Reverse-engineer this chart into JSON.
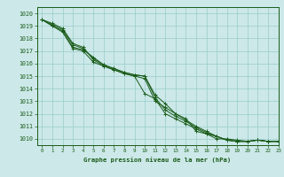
{
  "title": "Graphe pression niveau de la mer (hPa)",
  "bg_color": "#cce8e8",
  "grid_color": "#99cccc",
  "line_color": "#1a5c1a",
  "xlim": [
    -0.5,
    23
  ],
  "ylim": [
    1009.5,
    1020.5
  ],
  "yticks": [
    1010,
    1011,
    1012,
    1013,
    1014,
    1015,
    1016,
    1017,
    1018,
    1019,
    1020
  ],
  "xticks": [
    0,
    1,
    2,
    3,
    4,
    5,
    6,
    7,
    8,
    9,
    10,
    11,
    12,
    13,
    14,
    15,
    16,
    17,
    18,
    19,
    20,
    21,
    22,
    23
  ],
  "series": [
    [
      1019.5,
      1019.0,
      1018.5,
      1017.2,
      1017.0,
      1016.1,
      1015.8,
      1015.5,
      1015.2,
      1015.0,
      1013.6,
      1013.2,
      1012.0,
      1011.6,
      1011.2,
      1010.8,
      1010.4,
      1010.2,
      1009.9,
      1009.8,
      1009.8,
      1009.9,
      1009.8,
      1009.8
    ],
    [
      1019.5,
      1019.1,
      1018.7,
      1017.5,
      1017.2,
      1016.4,
      1015.9,
      1015.6,
      1015.3,
      1015.1,
      1015.0,
      1013.3,
      1012.3,
      1011.8,
      1011.4,
      1010.9,
      1010.5,
      1010.2,
      1009.9,
      1009.8,
      1009.8,
      1009.9,
      1009.8,
      1009.8
    ],
    [
      1019.5,
      1019.2,
      1018.8,
      1017.6,
      1017.3,
      1016.3,
      1015.8,
      1015.5,
      1015.2,
      1015.0,
      1014.8,
      1013.0,
      1012.5,
      1012.0,
      1011.5,
      1011.0,
      1010.6,
      1010.2,
      1009.9,
      1009.8,
      1009.8,
      1009.9,
      1009.8,
      1009.8
    ],
    [
      1019.5,
      1019.0,
      1018.6,
      1017.3,
      1017.1,
      1016.5,
      1015.9,
      1015.6,
      1015.3,
      1015.1,
      1015.0,
      1013.5,
      1012.8,
      1012.0,
      1011.6,
      1010.6,
      1010.4,
      1010.0,
      1010.0,
      1009.9,
      1009.8,
      1009.9,
      1009.8,
      1009.8
    ]
  ]
}
